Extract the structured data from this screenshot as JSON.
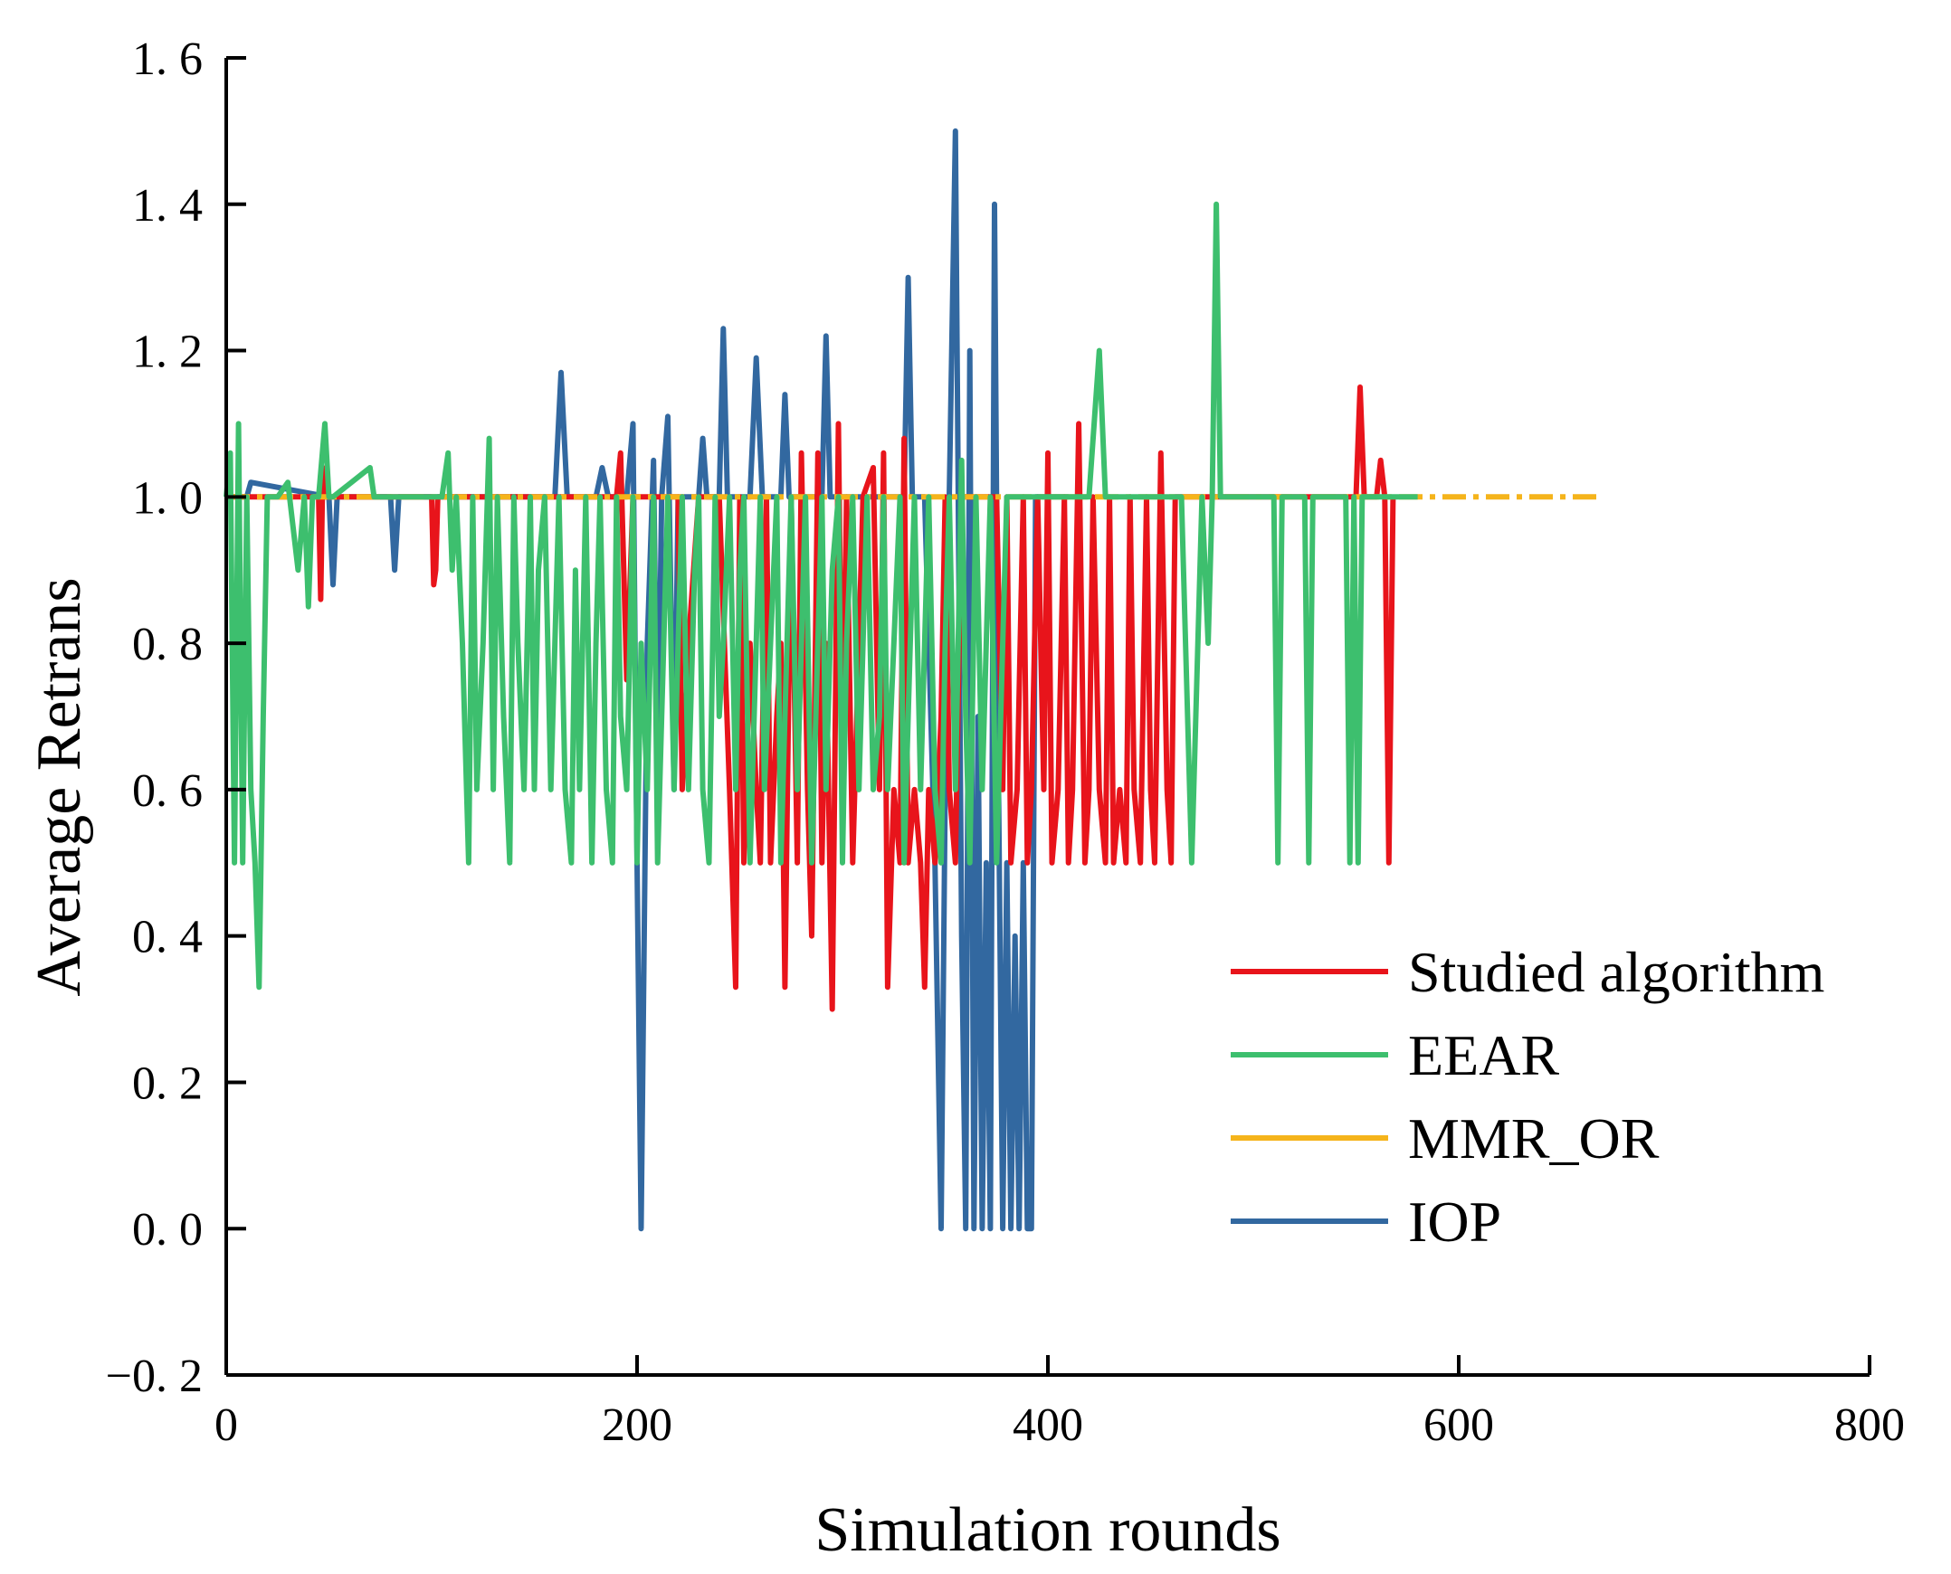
{
  "chart_data": {
    "type": "line",
    "xlabel": "Simulation rounds",
    "ylabel": "Average Retrans",
    "xlim": [
      0,
      800
    ],
    "ylim": [
      -0.2,
      1.6
    ],
    "xticks": [
      0,
      200,
      400,
      600,
      800
    ],
    "xtick_labels": [
      "0",
      "200",
      "400",
      "600",
      "800"
    ],
    "yticks": [
      -0.2,
      0,
      0.2,
      0.4,
      0.6,
      0.8,
      1.0,
      1.2,
      1.4,
      1.6
    ],
    "ytick_labels": [
      "−0. 2",
      "0. 0",
      "0. 2",
      "0. 4",
      "0. 6",
      "0. 8",
      "1. 0",
      "1. 2",
      "1. 4",
      "1. 6"
    ],
    "legend_position": "lower-right",
    "series": [
      {
        "name": "Studied algorithm",
        "color": "#e8141b",
        "x": [
          0,
          45,
          46,
          47,
          48,
          100,
          101,
          102,
          103,
          190,
          192,
          195,
          198,
          205,
          220,
          222,
          225,
          230,
          240,
          245,
          248,
          250,
          252,
          255,
          258,
          260,
          263,
          265,
          268,
          270,
          272,
          275,
          278,
          280,
          283,
          285,
          288,
          290,
          292,
          295,
          298,
          300,
          302,
          305,
          310,
          315,
          318,
          320,
          322,
          325,
          328,
          330,
          332,
          335,
          338,
          340,
          342,
          345,
          348,
          350,
          352,
          355,
          358,
          360,
          375,
          378,
          380,
          382,
          385,
          388,
          390,
          392,
          395,
          398,
          400,
          402,
          405,
          408,
          410,
          412,
          415,
          418,
          420,
          422,
          425,
          428,
          430,
          432,
          435,
          438,
          440,
          442,
          445,
          448,
          450,
          452,
          455,
          458,
          460,
          462,
          465,
          468,
          470,
          550,
          552,
          554,
          556,
          558,
          560,
          562,
          564,
          566,
          568
        ],
        "y": [
          1.0,
          1.0,
          0.86,
          1.04,
          1.0,
          1.0,
          0.88,
          0.9,
          1.0,
          1.0,
          1.06,
          0.75,
          1.0,
          1.0,
          1.0,
          0.6,
          0.8,
          1.0,
          1.0,
          0.6,
          0.33,
          1.0,
          0.5,
          0.8,
          0.6,
          0.5,
          1.0,
          0.5,
          0.7,
          0.8,
          0.33,
          1.0,
          0.5,
          1.06,
          0.6,
          0.4,
          1.06,
          0.5,
          0.8,
          0.3,
          1.1,
          0.6,
          1.0,
          0.5,
          1.0,
          1.04,
          0.6,
          1.06,
          0.33,
          0.6,
          0.5,
          1.08,
          0.5,
          0.6,
          0.5,
          0.33,
          0.6,
          0.5,
          0.7,
          1.0,
          0.6,
          0.5,
          1.0,
          1.0,
          1.0,
          0.6,
          1.0,
          0.5,
          0.6,
          1.0,
          0.5,
          0.6,
          1.0,
          0.6,
          1.06,
          0.5,
          0.6,
          1.0,
          0.5,
          0.6,
          1.1,
          0.5,
          0.6,
          1.0,
          0.6,
          0.5,
          1.0,
          0.5,
          0.6,
          0.5,
          1.0,
          0.6,
          0.5,
          1.0,
          0.6,
          0.5,
          1.06,
          0.6,
          0.5,
          1.0,
          1.0,
          1.0,
          1.0,
          1.0,
          1.15,
          1.0,
          1.0,
          1.0,
          1.0,
          1.05,
          1.0,
          0.5,
          1.0
        ]
      },
      {
        "name": "EEAR",
        "color": "#3dbf6e",
        "x": [
          0,
          2,
          4,
          6,
          8,
          10,
          12,
          14,
          16,
          18,
          20,
          25,
          30,
          35,
          38,
          40,
          42,
          45,
          48,
          50,
          52,
          70,
          72,
          105,
          108,
          110,
          112,
          115,
          118,
          120,
          122,
          125,
          128,
          130,
          132,
          135,
          138,
          140,
          142,
          145,
          148,
          150,
          152,
          155,
          158,
          160,
          162,
          165,
          168,
          170,
          172,
          175,
          178,
          180,
          182,
          185,
          188,
          190,
          192,
          195,
          198,
          200,
          202,
          205,
          208,
          210,
          212,
          215,
          218,
          220,
          222,
          225,
          228,
          230,
          232,
          235,
          238,
          240,
          242,
          245,
          248,
          250,
          252,
          255,
          258,
          260,
          262,
          265,
          268,
          270,
          272,
          275,
          278,
          280,
          282,
          285,
          288,
          290,
          292,
          295,
          298,
          300,
          302,
          305,
          308,
          310,
          312,
          315,
          318,
          320,
          322,
          325,
          328,
          330,
          332,
          335,
          338,
          340,
          342,
          345,
          348,
          350,
          352,
          355,
          358,
          360,
          362,
          365,
          368,
          370,
          372,
          375,
          378,
          380,
          382,
          385,
          388,
          390,
          395,
          400,
          405,
          410,
          415,
          420,
          425,
          428,
          430,
          435,
          440,
          445,
          450,
          455,
          460,
          465,
          470,
          475,
          478,
          480,
          482,
          484,
          486,
          490,
          510,
          512,
          514,
          516,
          525,
          527,
          529,
          531,
          545,
          547,
          549,
          551,
          553,
          580
        ],
        "y": [
          1.0,
          1.06,
          0.5,
          1.1,
          0.5,
          1.0,
          0.6,
          0.5,
          0.33,
          0.7,
          1.0,
          1.0,
          1.02,
          0.9,
          1.0,
          0.85,
          1.0,
          1.0,
          1.1,
          1.0,
          1.0,
          1.04,
          1.0,
          1.0,
          1.06,
          0.9,
          1.0,
          0.8,
          0.5,
          1.0,
          0.6,
          0.8,
          1.08,
          0.6,
          1.0,
          0.7,
          0.5,
          1.0,
          0.8,
          0.6,
          1.0,
          0.6,
          0.9,
          1.0,
          0.6,
          0.8,
          1.0,
          0.6,
          0.5,
          0.9,
          0.6,
          1.0,
          0.5,
          0.8,
          1.0,
          0.6,
          0.5,
          1.0,
          0.7,
          0.6,
          1.0,
          0.5,
          0.8,
          0.6,
          1.0,
          0.5,
          0.7,
          1.0,
          0.6,
          0.8,
          1.0,
          0.6,
          0.9,
          1.0,
          0.6,
          0.5,
          1.0,
          0.7,
          0.8,
          1.0,
          0.6,
          0.9,
          1.0,
          0.5,
          0.8,
          1.0,
          0.6,
          0.8,
          1.0,
          0.5,
          0.7,
          1.0,
          0.6,
          0.8,
          1.0,
          0.5,
          0.8,
          1.0,
          0.6,
          0.9,
          1.0,
          0.5,
          0.8,
          1.0,
          0.6,
          0.8,
          1.0,
          0.6,
          0.7,
          1.0,
          0.6,
          0.8,
          1.0,
          0.5,
          0.7,
          1.0,
          0.6,
          0.8,
          1.0,
          0.6,
          0.5,
          0.8,
          1.0,
          0.6,
          1.05,
          0.7,
          0.5,
          1.0,
          0.6,
          0.8,
          1.0,
          0.5,
          0.8,
          1.0,
          1.0,
          1.0,
          1.0,
          1.0,
          1.0,
          1.0,
          1.0,
          1.0,
          1.0,
          1.0,
          1.2,
          1.0,
          1.0,
          1.0,
          1.0,
          1.0,
          1.0,
          1.0,
          1.0,
          1.0,
          0.5,
          1.0,
          0.8,
          1.0,
          1.4,
          1.0,
          1.0,
          1.0,
          1.0,
          0.5,
          1.0,
          1.0,
          1.0,
          0.5,
          1.0,
          1.0,
          1.0,
          0.5,
          1.0,
          0.5,
          1.0,
          1.0
        ]
      },
      {
        "name": "MMR_OR",
        "color": "#f5b41b",
        "x": [
          0,
          100,
          200,
          300,
          400,
          500,
          575,
          590,
          600,
          620,
          640,
          660,
          670
        ],
        "y": [
          1.0,
          1.0,
          1.0,
          1.0,
          1.0,
          1.0,
          1.0,
          1.0,
          1.0,
          1.0,
          1.0,
          1.0,
          1.0
        ]
      },
      {
        "name": "IOP",
        "color": "#3268a0",
        "x": [
          0,
          10,
          12,
          50,
          52,
          54,
          80,
          82,
          84,
          160,
          163,
          166,
          180,
          183,
          186,
          195,
          198,
          200,
          202,
          205,
          208,
          210,
          212,
          215,
          218,
          220,
          222,
          230,
          232,
          234,
          240,
          242,
          244,
          255,
          258,
          261,
          270,
          272,
          274,
          290,
          292,
          294,
          330,
          332,
          334,
          340,
          345,
          348,
          350,
          352,
          355,
          358,
          360,
          362,
          364,
          366,
          368,
          370,
          372,
          374,
          376,
          378,
          380,
          382,
          384,
          386,
          388,
          390,
          392,
          394,
          396,
          400,
          410
        ],
        "y": [
          1.0,
          1.0,
          1.02,
          1.0,
          0.88,
          1.0,
          1.0,
          0.9,
          1.0,
          1.0,
          1.17,
          1.0,
          1.0,
          1.04,
          1.0,
          1.0,
          1.1,
          0.5,
          0.0,
          0.8,
          1.05,
          0.6,
          1.0,
          1.11,
          0.6,
          1.0,
          1.0,
          1.0,
          1.08,
          1.0,
          1.0,
          1.23,
          1.0,
          1.0,
          1.19,
          1.0,
          1.0,
          1.14,
          1.0,
          1.0,
          1.22,
          1.0,
          1.0,
          1.3,
          1.0,
          1.0,
          0.5,
          0.0,
          0.6,
          1.0,
          1.5,
          0.4,
          0.0,
          1.2,
          0.0,
          0.7,
          0.0,
          0.5,
          0.0,
          1.4,
          0.6,
          0.0,
          0.5,
          0.0,
          0.4,
          0.0,
          0.5,
          0.0,
          0.0,
          1.0,
          1.0,
          1.0,
          1.0
        ]
      }
    ]
  }
}
